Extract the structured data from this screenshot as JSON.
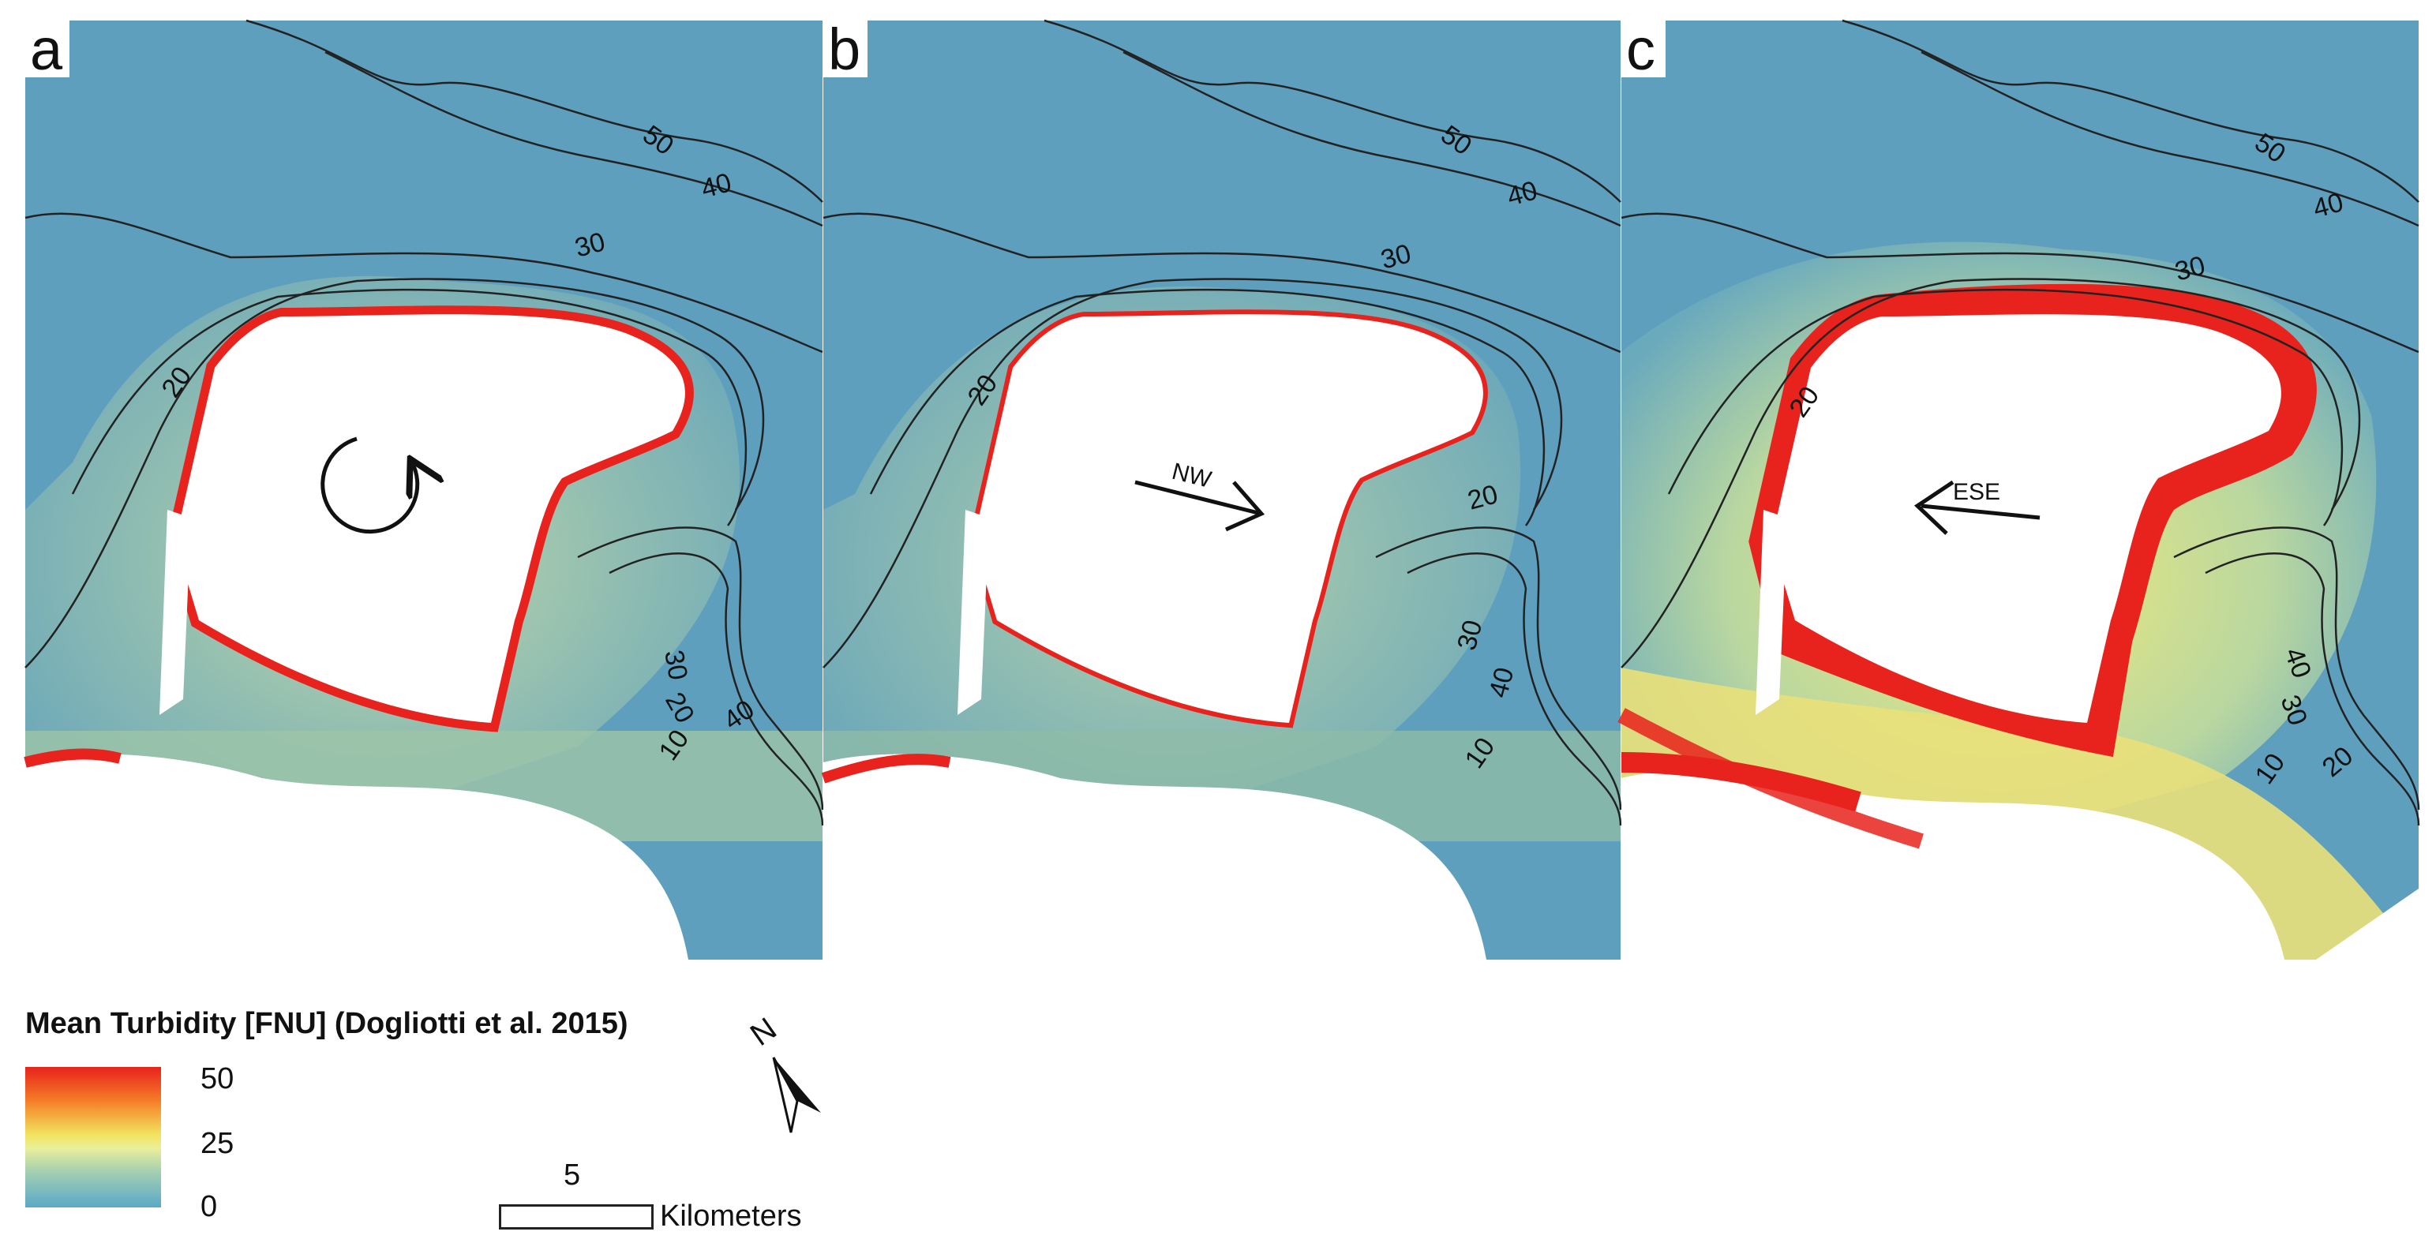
{
  "panels": [
    {
      "letter": "a",
      "arrow_label": "",
      "contour_labels": [
        "50",
        "40",
        "30",
        "20",
        "30",
        "20",
        "40",
        "10"
      ]
    },
    {
      "letter": "b",
      "arrow_label": "NW",
      "contour_labels": [
        "50",
        "40",
        "30",
        "20",
        "20",
        "30",
        "40",
        "10"
      ]
    },
    {
      "letter": "c",
      "arrow_label": "ESE",
      "contour_labels": [
        "50",
        "40",
        "30",
        "20",
        "40",
        "30",
        "20",
        "10"
      ]
    }
  ],
  "legend": {
    "title": "Mean Turbidity [FNU] (Dogliotti et al. 2015)",
    "ticks": [
      "50",
      "25",
      "0"
    ],
    "colors": {
      "high": "#e8221c",
      "mid": "#f1e35f",
      "low": "#5aa8c8"
    }
  },
  "scale_bar": {
    "value": "5",
    "unit": "Kilometers"
  },
  "north_arrow": {
    "label": "N",
    "icon": "north-arrow-icon"
  }
}
